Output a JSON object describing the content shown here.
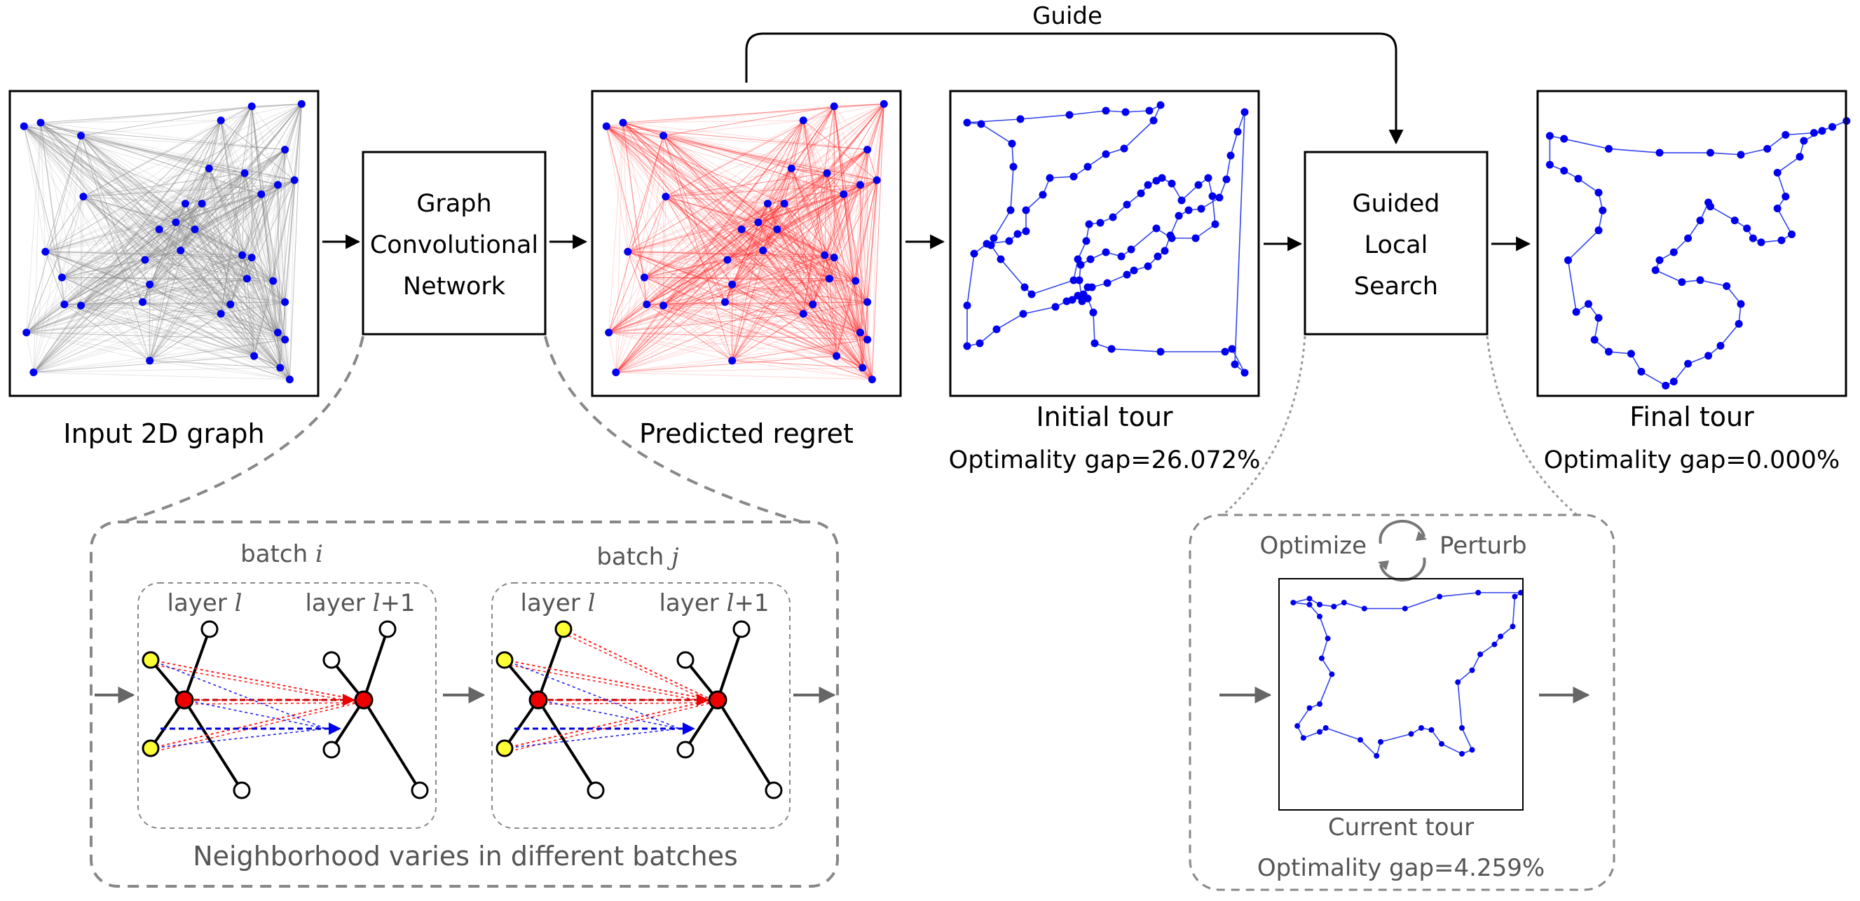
{
  "labels": {
    "guide": "Guide",
    "input_graph": "Input 2D graph",
    "gcn_line1": "Graph",
    "gcn_line2": "Convolutional",
    "gcn_line3": "Network",
    "predicted_regret": "Predicted regret",
    "initial_tour": "Initial tour",
    "initial_gap": "Optimality gap=26.072%",
    "gls_line1": "Guided",
    "gls_line2": "Local",
    "gls_line3": "Search",
    "final_tour": "Final tour",
    "final_gap": "Optimality gap=0.000%",
    "batch_word": "batch",
    "batch_i_var": "i",
    "batch_j_var": "j",
    "layer_word": "layer",
    "layer_var": "l",
    "layer_plus": "+1",
    "neighborhood_caption": "Neighborhood varies in different batches",
    "optimize": "Optimize",
    "perturb": "Perturb",
    "current_tour": "Current tour",
    "current_gap": "Optimality gap=4.259%"
  },
  "colors": {
    "node": "#0000ee",
    "tour_edge": "#3344ee",
    "graph_edge": "#8c8c8c",
    "regret_edge": "#ff2a2a",
    "center_node": "#ee0000",
    "neighbor_node": "#ffff33",
    "dashed_frame": "#888888"
  }
}
